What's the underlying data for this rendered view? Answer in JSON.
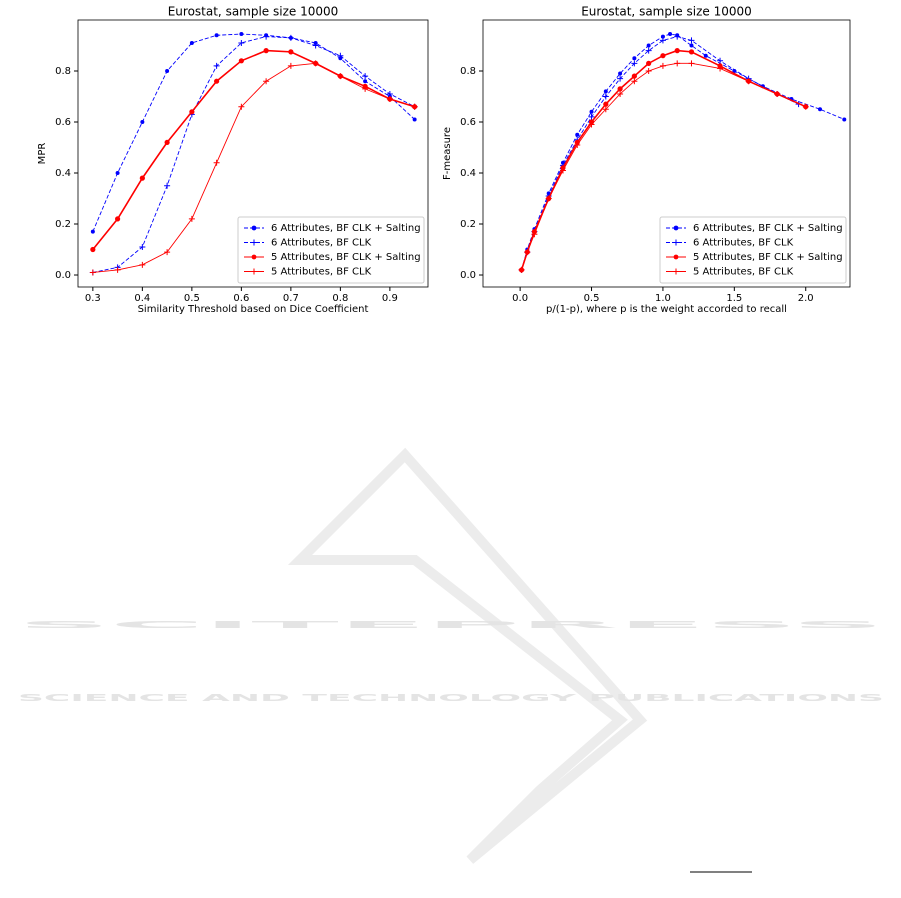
{
  "chart_data": [
    {
      "type": "line",
      "title": "Eurostat, sample size 10000",
      "xlabel": "Similarity Threshold based on Dice Coefficient",
      "ylabel": "MPR",
      "x": [
        0.3,
        0.35,
        0.4,
        0.45,
        0.5,
        0.55,
        0.6,
        0.65,
        0.7,
        0.75,
        0.8,
        0.85,
        0.9,
        0.95
      ],
      "series": [
        {
          "name": "6 Attributes, BF CLK + Salting",
          "color": "#0000ff",
          "marker": "o",
          "linestyle": "--",
          "values": [
            0.17,
            0.4,
            0.6,
            0.8,
            0.91,
            0.94,
            0.945,
            0.94,
            0.93,
            0.91,
            0.85,
            0.76,
            0.7,
            0.61
          ]
        },
        {
          "name": "6 Attributes, BF CLK",
          "color": "#0000ff",
          "marker": "+",
          "linestyle": "--",
          "values": [
            0.01,
            0.03,
            0.11,
            0.35,
            0.63,
            0.82,
            0.91,
            0.935,
            0.93,
            0.9,
            0.86,
            0.78,
            0.71,
            0.66
          ]
        },
        {
          "name": "5 Attributes, BF CLK + Salting",
          "color": "#ff0000",
          "marker": "o",
          "linestyle": "-",
          "values": [
            0.1,
            0.22,
            0.38,
            0.52,
            0.64,
            0.76,
            0.84,
            0.88,
            0.875,
            0.83,
            0.78,
            0.74,
            0.69,
            0.66
          ]
        },
        {
          "name": "5 Attributes, BF CLK",
          "color": "#ff0000",
          "marker": "+",
          "linestyle": "-",
          "values": [
            0.01,
            0.02,
            0.04,
            0.09,
            0.22,
            0.44,
            0.66,
            0.76,
            0.82,
            0.83,
            0.78,
            0.73,
            0.69,
            0.66
          ]
        }
      ],
      "xlim": [
        0.27,
        0.977
      ],
      "ylim": [
        -0.047,
        1.0
      ],
      "xticks": [
        0.3,
        0.4,
        0.5,
        0.6,
        0.7,
        0.8,
        0.9
      ],
      "yticks": [
        {
          "value": 0,
          "label": "0.0"
        },
        0.2,
        0.4,
        0.6,
        0.8
      ],
      "legend": "lower right"
    },
    {
      "type": "line",
      "title": "Eurostat, sample size 10000",
      "xlabel": "p/(1-p), where p is the weight accorded to recall",
      "ylabel": "F-measure",
      "series": [
        {
          "name": "6 Attributes, BF CLK + Salting",
          "color": "#0000ff",
          "marker": "o",
          "linestyle": "--",
          "x": [
            0.01,
            0.05,
            0.1,
            0.2,
            0.3,
            0.4,
            0.5,
            0.6,
            0.7,
            0.8,
            0.9,
            1.0,
            1.05,
            1.1,
            1.2,
            1.3,
            1.5,
            1.7,
            1.9,
            2.1,
            2.27
          ],
          "values": [
            0.02,
            0.1,
            0.18,
            0.32,
            0.44,
            0.55,
            0.64,
            0.72,
            0.79,
            0.85,
            0.9,
            0.935,
            0.945,
            0.94,
            0.9,
            0.86,
            0.8,
            0.74,
            0.69,
            0.65,
            0.61
          ]
        },
        {
          "name": "6 Attributes, BF CLK",
          "color": "#0000ff",
          "marker": "+",
          "linestyle": "--",
          "x": [
            0.01,
            0.05,
            0.1,
            0.2,
            0.3,
            0.4,
            0.5,
            0.6,
            0.7,
            0.8,
            0.9,
            1.0,
            1.1,
            1.2,
            1.4,
            1.6,
            1.8,
            1.95
          ],
          "values": [
            0.02,
            0.09,
            0.17,
            0.31,
            0.43,
            0.53,
            0.62,
            0.7,
            0.77,
            0.83,
            0.88,
            0.92,
            0.935,
            0.92,
            0.84,
            0.77,
            0.71,
            0.67
          ]
        },
        {
          "name": "5 Attributes, BF CLK + Salting",
          "color": "#ff0000",
          "marker": "o",
          "linestyle": "-",
          "x": [
            0.01,
            0.05,
            0.1,
            0.2,
            0.3,
            0.4,
            0.5,
            0.6,
            0.7,
            0.8,
            0.9,
            1.0,
            1.1,
            1.2,
            1.4,
            1.6,
            1.8,
            2.0
          ],
          "values": [
            0.02,
            0.09,
            0.17,
            0.3,
            0.42,
            0.52,
            0.6,
            0.67,
            0.73,
            0.78,
            0.83,
            0.86,
            0.88,
            0.875,
            0.82,
            0.76,
            0.71,
            0.66
          ]
        },
        {
          "name": "5 Attributes, BF CLK",
          "color": "#ff0000",
          "marker": "+",
          "linestyle": "-",
          "x": [
            0.01,
            0.05,
            0.1,
            0.2,
            0.3,
            0.4,
            0.5,
            0.6,
            0.7,
            0.8,
            0.9,
            1.0,
            1.1,
            1.2,
            1.4,
            1.6,
            1.8,
            2.0
          ],
          "values": [
            0.02,
            0.09,
            0.16,
            0.3,
            0.41,
            0.51,
            0.59,
            0.65,
            0.71,
            0.76,
            0.8,
            0.82,
            0.83,
            0.83,
            0.81,
            0.76,
            0.71,
            0.66
          ]
        }
      ],
      "xlim": [
        -0.26,
        2.31
      ],
      "ylim": [
        -0.047,
        1.0
      ],
      "xticks": [
        {
          "value": 0,
          "label": "0.0"
        },
        0.5,
        {
          "value": 1,
          "label": "1.0"
        },
        1.5,
        {
          "value": 2,
          "label": "2.0"
        }
      ],
      "yticks": [
        {
          "value": 0,
          "label": "0.0"
        },
        0.2,
        0.4,
        0.6,
        0.8
      ],
      "legend": "lower right"
    }
  ],
  "watermark": {
    "title": "SCITEPRESS",
    "subtitle": "SCIENCE AND TECHNOLOGY PUBLICATIONS"
  }
}
